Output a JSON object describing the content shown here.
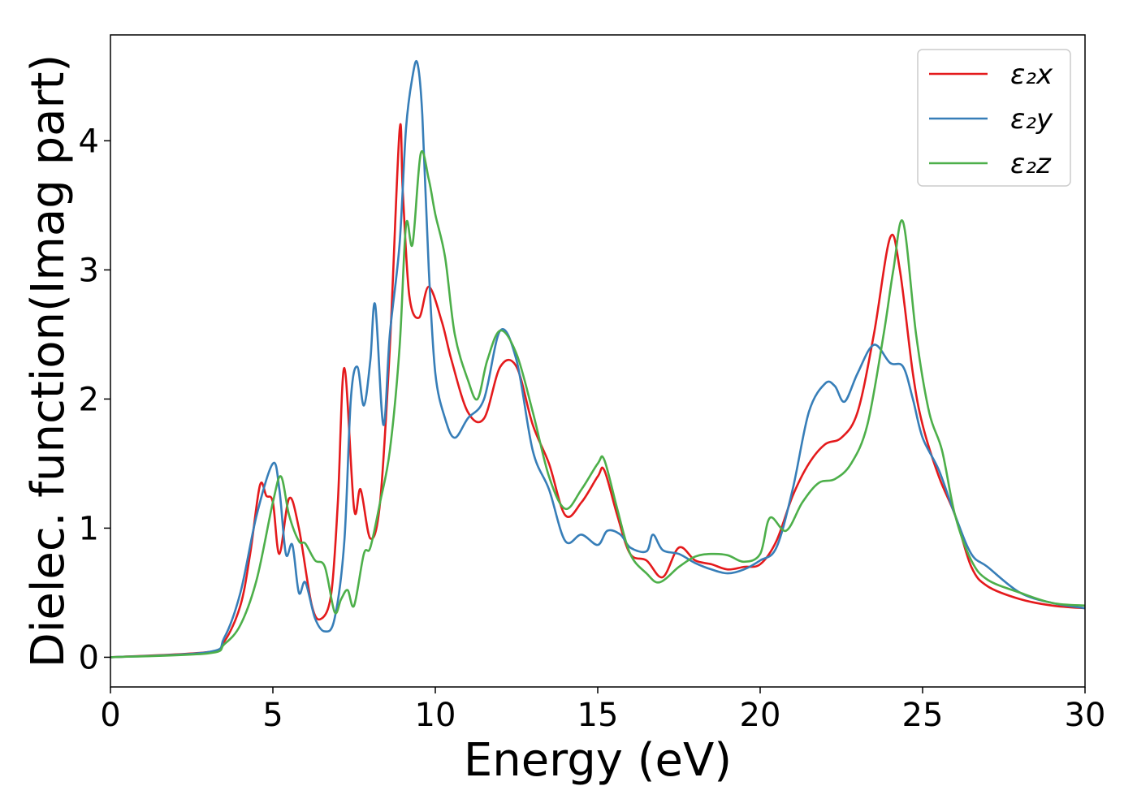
{
  "chart_data": {
    "type": "line",
    "xlabel": "Energy (eV)",
    "ylabel": "Dielec. function(Imag part)",
    "xlim": [
      0,
      30
    ],
    "ylim": [
      -0.23,
      4.82
    ],
    "xticks": [
      0,
      5,
      10,
      15,
      20,
      25,
      30
    ],
    "yticks": [
      0,
      1,
      2,
      3,
      4
    ],
    "grid": false,
    "legend_position": "top-right",
    "series": [
      {
        "name": "ε₂x",
        "color": "#e41a1c",
        "x": [
          0,
          3,
          3.5,
          4,
          4.3,
          4.6,
          4.8,
          5.0,
          5.2,
          5.5,
          5.8,
          6.2,
          6.5,
          6.8,
          7.0,
          7.2,
          7.5,
          7.7,
          8.0,
          8.3,
          8.6,
          8.9,
          9.0,
          9.2,
          9.5,
          9.8,
          10.2,
          10.5,
          11.0,
          11.5,
          12.0,
          12.5,
          13.0,
          13.5,
          14.0,
          14.5,
          15.0,
          15.2,
          15.6,
          16.0,
          16.5,
          17.0,
          17.5,
          18.0,
          18.5,
          19.0,
          19.5,
          20.0,
          20.5,
          21.0,
          21.5,
          22.0,
          22.5,
          23.0,
          23.5,
          24.0,
          24.3,
          24.7,
          25.0,
          25.5,
          26.0,
          26.5,
          27.0,
          28.0,
          29.0,
          30.0
        ],
        "values": [
          0,
          0.04,
          0.12,
          0.4,
          0.8,
          1.33,
          1.25,
          1.2,
          0.8,
          1.23,
          1.0,
          0.4,
          0.3,
          0.5,
          1.2,
          2.24,
          1.15,
          1.3,
          0.92,
          1.2,
          2.4,
          4.08,
          3.6,
          2.8,
          2.63,
          2.87,
          2.6,
          2.3,
          1.9,
          1.85,
          2.25,
          2.25,
          1.8,
          1.5,
          1.1,
          1.2,
          1.4,
          1.45,
          1.1,
          0.8,
          0.75,
          0.62,
          0.85,
          0.75,
          0.72,
          0.68,
          0.7,
          0.72,
          0.9,
          1.25,
          1.5,
          1.65,
          1.7,
          1.9,
          2.5,
          3.25,
          3.0,
          2.2,
          1.8,
          1.4,
          1.1,
          0.7,
          0.55,
          0.45,
          0.4,
          0.38
        ]
      },
      {
        "name": "ε₂y",
        "color": "#377eb8",
        "x": [
          0,
          3,
          3.5,
          4,
          4.5,
          5.0,
          5.2,
          5.4,
          5.6,
          5.8,
          6.0,
          6.3,
          6.6,
          6.9,
          7.2,
          7.4,
          7.6,
          7.8,
          8.0,
          8.15,
          8.4,
          8.6,
          8.9,
          9.1,
          9.3,
          9.45,
          9.6,
          9.8,
          10.0,
          10.3,
          10.6,
          11.0,
          11.5,
          12.0,
          12.5,
          13.0,
          13.5,
          14.0,
          14.5,
          15.0,
          15.3,
          15.7,
          16.0,
          16.5,
          16.7,
          17.0,
          17.5,
          18.0,
          18.5,
          19.0,
          19.5,
          20.0,
          20.5,
          21.0,
          21.5,
          22.0,
          22.3,
          22.6,
          23.0,
          23.5,
          24.0,
          24.4,
          24.7,
          25.0,
          25.5,
          26.0,
          26.5,
          27.0,
          28.0,
          29.0,
          30.0
        ],
        "values": [
          0,
          0.04,
          0.15,
          0.5,
          1.1,
          1.5,
          1.3,
          0.8,
          0.87,
          0.5,
          0.58,
          0.3,
          0.2,
          0.3,
          0.9,
          2.0,
          2.25,
          1.95,
          2.3,
          2.73,
          1.8,
          2.5,
          3.2,
          4.1,
          4.5,
          4.6,
          4.2,
          3.0,
          2.2,
          1.85,
          1.7,
          1.85,
          2.0,
          2.53,
          2.3,
          1.6,
          1.3,
          0.9,
          0.95,
          0.87,
          0.98,
          0.95,
          0.85,
          0.82,
          0.95,
          0.83,
          0.8,
          0.73,
          0.68,
          0.65,
          0.68,
          0.75,
          0.85,
          1.3,
          1.9,
          2.12,
          2.1,
          1.98,
          2.2,
          2.42,
          2.28,
          2.25,
          2.0,
          1.7,
          1.45,
          1.1,
          0.8,
          0.7,
          0.5,
          0.42,
          0.38
        ]
      },
      {
        "name": "ε₂z",
        "color": "#4daf4a",
        "x": [
          0,
          3,
          3.5,
          4,
          4.5,
          5.0,
          5.25,
          5.5,
          5.8,
          6.0,
          6.3,
          6.6,
          6.9,
          7.1,
          7.3,
          7.5,
          7.8,
          8.0,
          8.3,
          8.6,
          8.9,
          9.1,
          9.3,
          9.55,
          9.8,
          10.0,
          10.3,
          10.6,
          11.0,
          11.3,
          11.6,
          12.0,
          12.5,
          13.0,
          13.5,
          14.0,
          14.5,
          15.0,
          15.2,
          15.6,
          16.0,
          16.5,
          16.9,
          17.5,
          18.0,
          18.5,
          19.0,
          19.5,
          20.0,
          20.3,
          20.8,
          21.3,
          21.8,
          22.3,
          22.8,
          23.3,
          23.8,
          24.1,
          24.4,
          24.8,
          25.2,
          25.6,
          26.0,
          26.5,
          27.0,
          28.0,
          29.0,
          30.0
        ],
        "values": [
          0,
          0.03,
          0.1,
          0.25,
          0.6,
          1.2,
          1.4,
          1.1,
          0.9,
          0.88,
          0.75,
          0.7,
          0.35,
          0.45,
          0.52,
          0.4,
          0.8,
          0.85,
          1.2,
          1.6,
          2.4,
          3.35,
          3.2,
          3.9,
          3.7,
          3.43,
          3.1,
          2.5,
          2.15,
          2.0,
          2.3,
          2.53,
          2.35,
          1.9,
          1.4,
          1.15,
          1.3,
          1.5,
          1.53,
          1.15,
          0.8,
          0.65,
          0.58,
          0.7,
          0.78,
          0.8,
          0.79,
          0.74,
          0.8,
          1.08,
          0.98,
          1.2,
          1.35,
          1.38,
          1.5,
          1.8,
          2.5,
          3.0,
          3.37,
          2.5,
          1.9,
          1.6,
          1.1,
          0.75,
          0.6,
          0.5,
          0.42,
          0.4
        ]
      }
    ]
  }
}
